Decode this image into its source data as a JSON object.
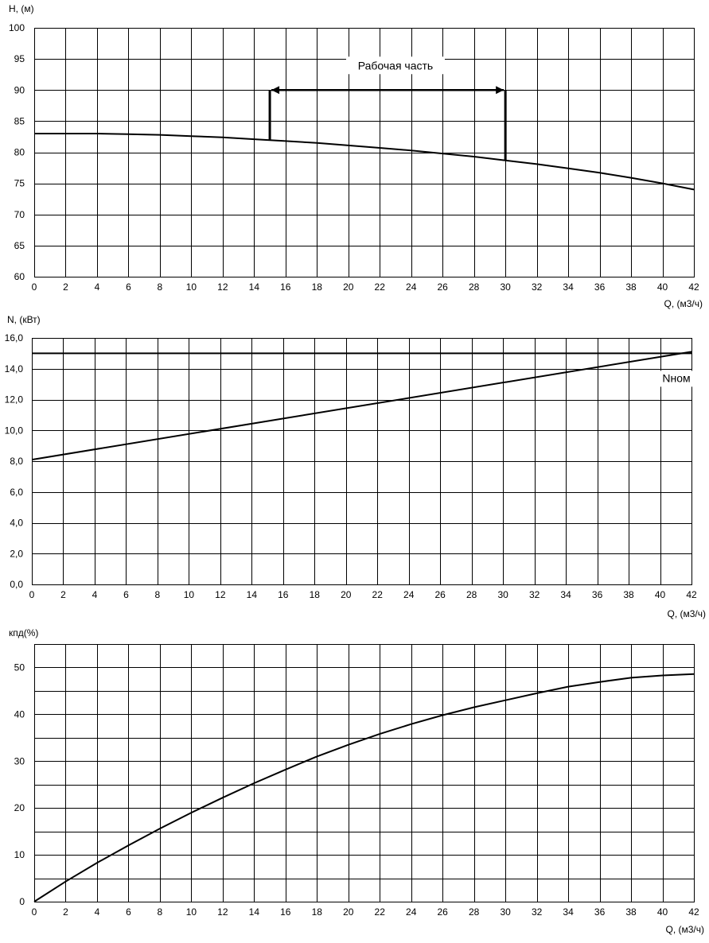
{
  "chart_data": [
    {
      "type": "line",
      "ylabel": "H, (м)",
      "xlabel": "Q, (м3/ч)",
      "xlim": [
        0,
        42
      ],
      "ylim": [
        60,
        100
      ],
      "x_ticks": [
        "0",
        "2",
        "4",
        "6",
        "8",
        "10",
        "12",
        "14",
        "16",
        "18",
        "20",
        "22",
        "24",
        "26",
        "28",
        "30",
        "32",
        "34",
        "36",
        "38",
        "40",
        "42"
      ],
      "y_ticks": [
        "60",
        "65",
        "70",
        "75",
        "80",
        "85",
        "90",
        "95",
        "100"
      ],
      "grid": true,
      "series": [
        {
          "x": [
            0,
            2,
            4,
            6,
            8,
            10,
            12,
            14,
            16,
            18,
            20,
            22,
            24,
            26,
            28,
            30,
            32,
            34,
            36,
            38,
            40,
            42
          ],
          "y": [
            83.0,
            83.0,
            83.0,
            82.9,
            82.8,
            82.6,
            82.4,
            82.1,
            81.8,
            81.5,
            81.1,
            80.7,
            80.3,
            79.8,
            79.3,
            78.7,
            78.1,
            77.4,
            76.7,
            75.9,
            75.0,
            74.0
          ]
        }
      ],
      "annotation": {
        "text": "Рабочая часть",
        "x_from": 15,
        "x_to": 30,
        "y_level": 90
      }
    },
    {
      "type": "line",
      "ylabel": "N, (кВт)",
      "xlabel": "Q, (м3/ч)",
      "xlim": [
        0,
        42
      ],
      "ylim": [
        0,
        16
      ],
      "x_ticks": [
        "0",
        "2",
        "4",
        "6",
        "8",
        "10",
        "12",
        "14",
        "16",
        "18",
        "20",
        "22",
        "24",
        "26",
        "28",
        "30",
        "32",
        "34",
        "36",
        "38",
        "40",
        "42"
      ],
      "y_ticks": [
        "0,0",
        "2,0",
        "4,0",
        "6,0",
        "8,0",
        "10,0",
        "12,0",
        "14,0",
        "16,0"
      ],
      "grid": true,
      "series": [
        {
          "x": [
            0,
            42
          ],
          "y": [
            8.1,
            15.1
          ]
        },
        {
          "name": "Nном",
          "x": [
            0,
            42
          ],
          "y": [
            15.0,
            15.0
          ]
        }
      ]
    },
    {
      "type": "line",
      "ylabel": "кпд(%)",
      "xlabel": "Q, (м3/ч)",
      "xlim": [
        0,
        42
      ],
      "ylim": [
        0,
        55
      ],
      "x_ticks": [
        "0",
        "2",
        "4",
        "6",
        "8",
        "10",
        "12",
        "14",
        "16",
        "18",
        "20",
        "22",
        "24",
        "26",
        "28",
        "30",
        "32",
        "34",
        "36",
        "38",
        "40",
        "42"
      ],
      "y_ticks": [
        "0",
        "10",
        "20",
        "30",
        "40",
        "50"
      ],
      "grid": true,
      "series": [
        {
          "x": [
            0,
            2,
            4,
            6,
            8,
            10,
            12,
            14,
            16,
            18,
            20,
            22,
            24,
            26,
            28,
            30,
            32,
            34,
            36,
            38,
            40,
            42
          ],
          "y": [
            0,
            4.3,
            8.3,
            12.0,
            15.6,
            19.0,
            22.2,
            25.3,
            28.2,
            31.0,
            33.5,
            35.8,
            37.9,
            39.8,
            41.5,
            43.0,
            44.5,
            45.9,
            46.9,
            47.8,
            48.3,
            48.6
          ]
        }
      ]
    }
  ]
}
